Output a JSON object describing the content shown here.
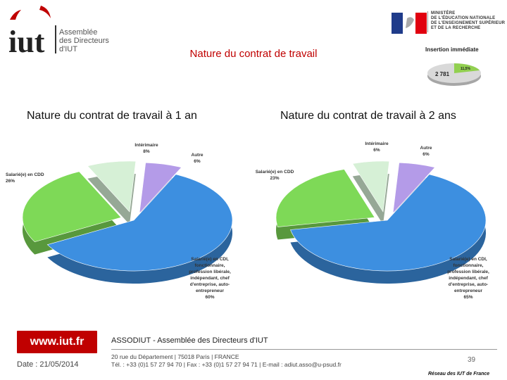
{
  "header": {
    "logo_lines": [
      "Assemblée",
      "des Directeurs",
      "d'IUT"
    ],
    "ministry_lines": [
      "MINISTÈRE",
      "DE L'ÉDUCATION NATIONALE",
      "DE L'ENSEIGNEMENT SUPÉRIEUR",
      "ET DE LA RECHERCHE"
    ],
    "title": "Nature du contrat de travail"
  },
  "insertion": {
    "title": "Insertion immédiate",
    "big_label": "2 781",
    "small_label": "11,5%",
    "colors": {
      "big": "#d9d9d9",
      "small": "#92d050"
    }
  },
  "charts": {
    "left_title": "Nature du contrat de travail à 1 an",
    "right_title": "Nature du contrat de travail à 2 ans"
  },
  "chart_data": [
    {
      "type": "pie",
      "title": "Nature du contrat de travail à 1 an",
      "slices": [
        {
          "label": "Salarié(e) en CDI, fonctionnaire, profession libérale, indépendant, chef d'entreprise, auto-entrepreneur",
          "label_lines": [
            "Salarié(e) en CDI,",
            "fonctionnaire,",
            "profession libérale,",
            "indépendant, chef",
            "d'entreprise, auto-",
            "entrepreneur"
          ],
          "value_label": "60%",
          "value": 60,
          "color": "#3d8fe0"
        },
        {
          "label": "Salarié(e) en CDD",
          "label_lines": [
            "Salarié(e) en CDD"
          ],
          "value_label": "26%",
          "value": 26,
          "color": "#7ed957"
        },
        {
          "label": "Intérimaire",
          "label_lines": [
            "Intérimaire"
          ],
          "value_label": "8%",
          "value": 8,
          "color": "#d6f0d6"
        },
        {
          "label": "Autre",
          "label_lines": [
            "Autre"
          ],
          "value_label": "6%",
          "value": 6,
          "color": "#b49be8"
        }
      ]
    },
    {
      "type": "pie",
      "title": "Nature du contrat de travail à 2 ans",
      "slices": [
        {
          "label": "Salarié(e) en CDI, fonctionnaire, profession libérale, indépendant, chef d'entreprise, auto-entrepreneur",
          "label_lines": [
            "Salarié(e) en CDI,",
            "fonctionnaire,",
            "profession libérale,",
            "indépendant, chef",
            "d'entreprise, auto-",
            "entrepreneur"
          ],
          "value_label": "65%",
          "value": 65,
          "color": "#3d8fe0"
        },
        {
          "label": "Salarié(e) en CDD",
          "label_lines": [
            "Salarié(e) en CDD"
          ],
          "value_label": "23%",
          "value": 23,
          "color": "#7ed957"
        },
        {
          "label": "Intérimaire",
          "label_lines": [
            "Intérimaire"
          ],
          "value_label": "6%",
          "value": 6,
          "color": "#d6f0d6"
        },
        {
          "label": "Autre",
          "label_lines": [
            "Autre"
          ],
          "value_label": "6%",
          "value": 6,
          "color": "#b49be8"
        }
      ]
    }
  ],
  "footer": {
    "url": "www.iut.fr",
    "date": "Date : 21/05/2014",
    "org": "ASSODIUT - Assemblée des Directeurs d'IUT",
    "address": "20 rue du Département | 75018 Paris | FRANCE",
    "contact": "Tél. : +33 (0)1 57 27 94 70 | Fax : +33 (0)1 57 27 94 71 | E-mail : adiut.asso@u-psud.fr",
    "page": "39",
    "network": "Réseau des IUT de France"
  }
}
